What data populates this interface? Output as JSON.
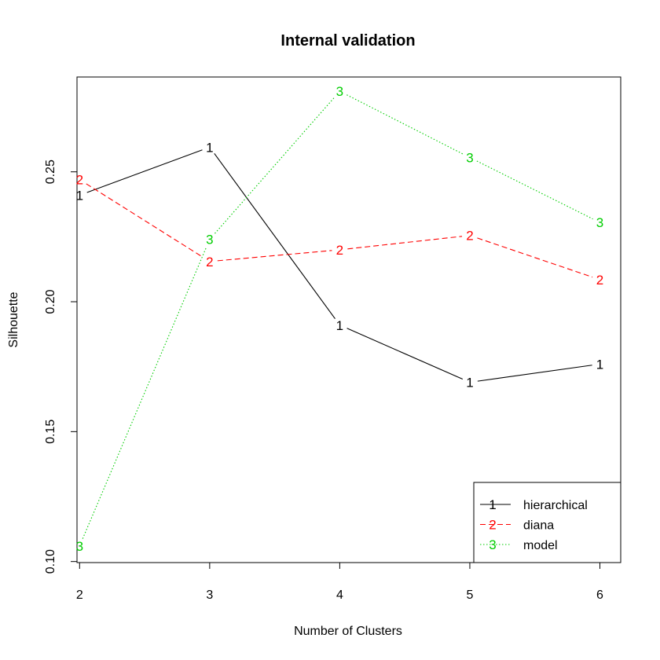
{
  "chart_data": {
    "type": "line",
    "title": "Internal validation",
    "xlabel": "Number of Clusters",
    "ylabel": "Silhouette",
    "x": [
      2,
      3,
      4,
      5,
      6
    ],
    "x_tick_labels": [
      "2",
      "3",
      "4",
      "5",
      "6"
    ],
    "y_ticks": [
      0.1,
      0.15,
      0.2,
      0.25
    ],
    "y_tick_labels": [
      "0.10",
      "0.15",
      "0.20",
      "0.25"
    ],
    "xlim": [
      1.98,
      6.16
    ],
    "ylim": [
      0.0996,
      0.2865
    ],
    "grid": false,
    "legend_position": "bottom-right",
    "series": [
      {
        "name": "hierarchical",
        "marker": "1",
        "color": "#000000",
        "linestyle": "solid",
        "values": [
          0.241,
          0.2595,
          0.191,
          0.169,
          0.176
        ]
      },
      {
        "name": "diana",
        "marker": "2",
        "color": "#ff0000",
        "linestyle": "dashed",
        "values": [
          0.247,
          0.2155,
          0.22,
          0.2255,
          0.2085
        ]
      },
      {
        "name": "model",
        "marker": "3",
        "color": "#00cd00",
        "linestyle": "dotted",
        "values": [
          0.106,
          0.224,
          0.281,
          0.2555,
          0.2305
        ]
      }
    ]
  }
}
